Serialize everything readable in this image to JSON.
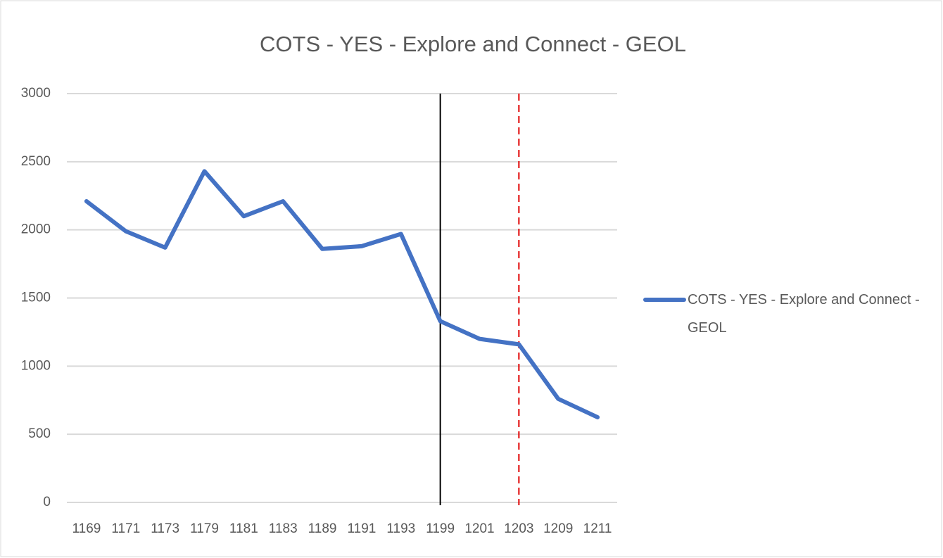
{
  "chart_data": {
    "type": "line",
    "title": "COTS - YES - Explore and Connect - GEOL",
    "categories": [
      "1169",
      "1171",
      "1173",
      "1179",
      "1181",
      "1183",
      "1189",
      "1191",
      "1193",
      "1199",
      "1201",
      "1203",
      "1209",
      "1211"
    ],
    "series": [
      {
        "name": "COTS - YES - Explore and Connect - GEOL",
        "color": "#4472c4",
        "values": [
          2210,
          1990,
          1870,
          2430,
          2100,
          2210,
          1860,
          1880,
          1970,
          1330,
          1200,
          1160,
          760,
          625
        ]
      }
    ],
    "ylim": [
      0,
      3000
    ],
    "yticks": [
      0,
      500,
      1000,
      1500,
      2000,
      2500,
      3000
    ],
    "grid": true,
    "legend": "right",
    "vertical_lines": [
      {
        "x": "1199",
        "color": "#000000",
        "style": "solid"
      },
      {
        "x": "1203",
        "color": "#e00000",
        "style": "dashed"
      }
    ]
  }
}
